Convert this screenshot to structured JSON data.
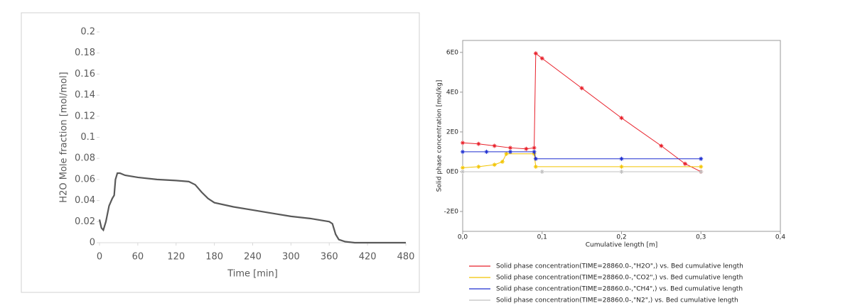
{
  "chart_data": [
    {
      "type": "line",
      "x_label": "Time [min]",
      "y_label": "H2O Mole fraction [mol/mol]",
      "xlim": [
        0,
        480
      ],
      "xticks": [
        0,
        60,
        120,
        180,
        240,
        300,
        360,
        420,
        480
      ],
      "ylim": [
        0,
        0.2
      ],
      "yticks": [
        0,
        0.02,
        0.04,
        0.06,
        0.08,
        0.1,
        0.12,
        0.14,
        0.16,
        0.18,
        0.2
      ],
      "grid": false,
      "series": [
        {
          "color": "#595959",
          "x": [
            0,
            3,
            6,
            10,
            15,
            20,
            23,
            25,
            28,
            32,
            40,
            60,
            90,
            120,
            140,
            150,
            160,
            170,
            180,
            210,
            240,
            270,
            300,
            330,
            360,
            365,
            370,
            375,
            385,
            400,
            480
          ],
          "values": [
            0.022,
            0.014,
            0.012,
            0.02,
            0.035,
            0.042,
            0.045,
            0.06,
            0.066,
            0.066,
            0.064,
            0.062,
            0.06,
            0.059,
            0.058,
            0.055,
            0.048,
            0.042,
            0.038,
            0.034,
            0.031,
            0.028,
            0.025,
            0.023,
            0.02,
            0.018,
            0.008,
            0.003,
            0.001,
            0,
            0
          ]
        }
      ]
    },
    {
      "type": "line",
      "x_label": "Cumulative length [m]",
      "y_label": "Solid phase concentration [mol/kg]",
      "xlim": [
        0,
        0.4
      ],
      "xticks": [
        {
          "value": 0,
          "label": "0,0"
        },
        {
          "value": 0.1,
          "label": "0,1"
        },
        {
          "value": 0.2,
          "label": "0,2"
        },
        {
          "value": 0.3,
          "label": "0,3"
        },
        {
          "value": 0.4,
          "label": "0,4"
        }
      ],
      "ylim": [
        -3,
        6.6
      ],
      "yticks": [
        {
          "value": -2,
          "label": "-2E0"
        },
        {
          "value": 0,
          "label": "0E0"
        },
        {
          "value": 2,
          "label": "2E0"
        },
        {
          "value": 4,
          "label": "4E0"
        },
        {
          "value": 6,
          "label": "6E0"
        }
      ],
      "grid": false,
      "markers": true,
      "series": [
        {
          "name": "Solid phase concentration(TIME=28860.0-,\"H2O\",) vs. Bed cumulative length",
          "color": "#e8202a",
          "x": [
            0,
            0.02,
            0.04,
            0.06,
            0.08,
            0.09,
            0.092,
            0.1,
            0.15,
            0.2,
            0.25,
            0.28,
            0.3
          ],
          "values": [
            1.45,
            1.4,
            1.3,
            1.2,
            1.15,
            1.2,
            5.95,
            5.7,
            4.2,
            2.7,
            1.3,
            0.4,
            0
          ]
        },
        {
          "name": "Solid phase concentration(TIME=28860.0-,\"CO2\",) vs. Bed cumulative length",
          "color": "#f2c400",
          "x": [
            0,
            0.02,
            0.04,
            0.05,
            0.055,
            0.09,
            0.092,
            0.2,
            0.3
          ],
          "values": [
            0.2,
            0.25,
            0.35,
            0.5,
            0.9,
            0.9,
            0.25,
            0.25,
            0.25
          ]
        },
        {
          "name": "Solid phase concentration(TIME=28860.0-,\"CH4\",) vs. Bed cumulative length",
          "color": "#1f2fd0",
          "x": [
            0,
            0.03,
            0.06,
            0.09,
            0.092,
            0.2,
            0.3
          ],
          "values": [
            1,
            1,
            1,
            1,
            0.65,
            0.65,
            0.65
          ]
        },
        {
          "name": "Solid phase concentration(TIME=28860.0-,\"N2\",) vs. Bed cumulative length",
          "color": "#c0c0c0",
          "x": [
            0,
            0.1,
            0.2,
            0.3
          ],
          "values": [
            0,
            0,
            0,
            0
          ]
        }
      ]
    }
  ]
}
